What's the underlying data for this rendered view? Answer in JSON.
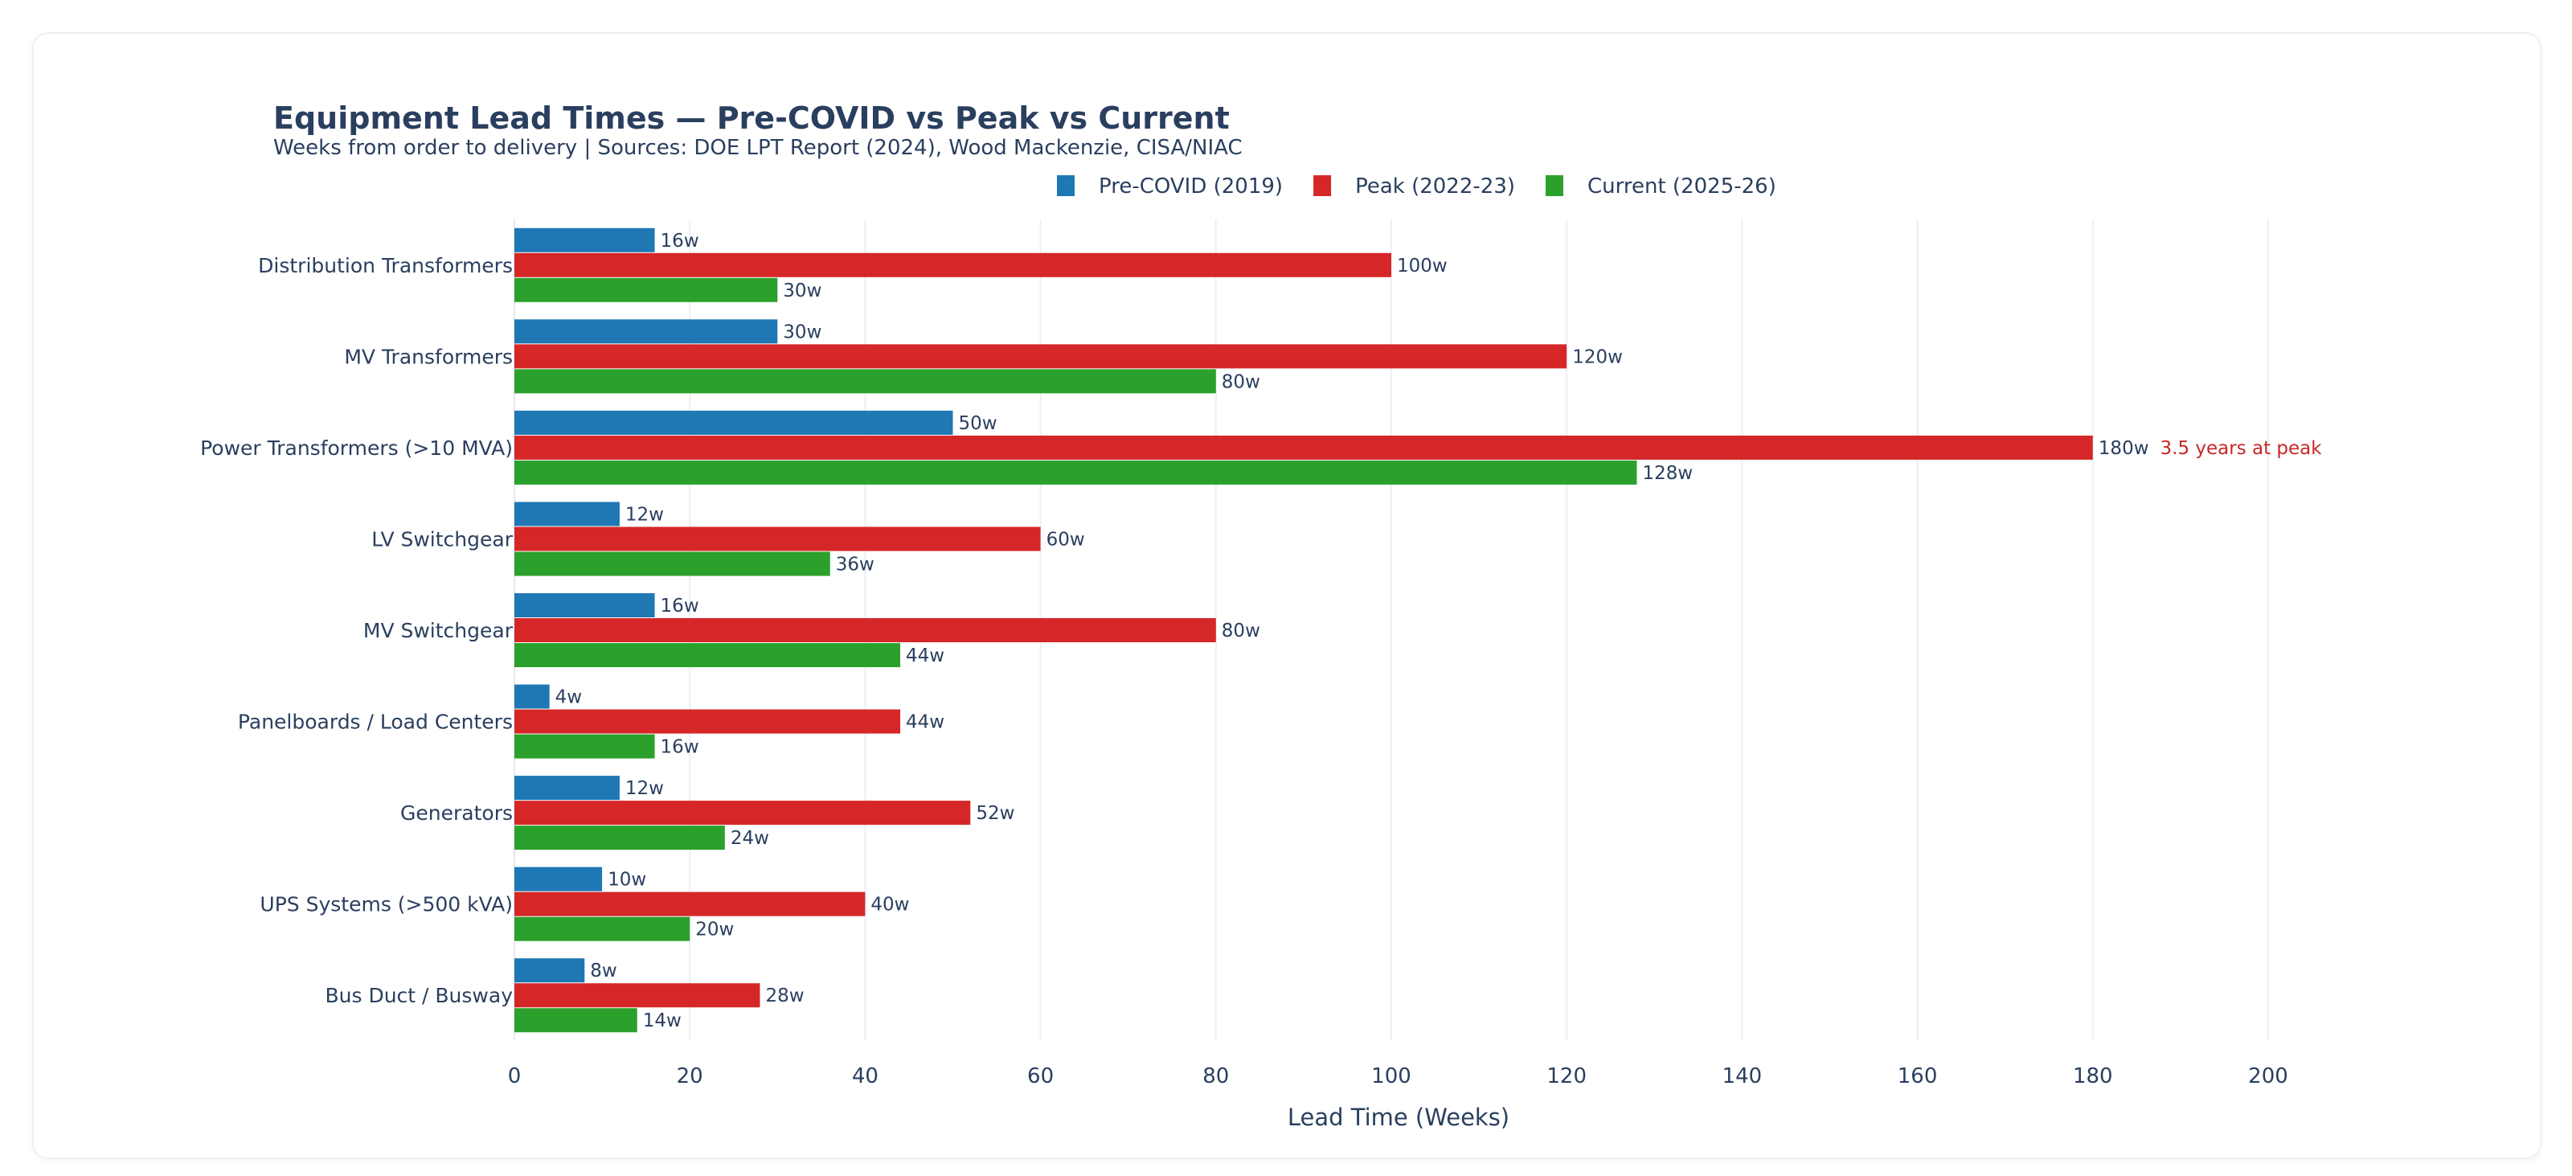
{
  "chart_data": {
    "type": "bar",
    "orientation": "horizontal",
    "title": "Equipment Lead Times — Pre-COVID vs Peak vs Current",
    "subtitle": "Weeks from order to delivery | Sources: DOE LPT Report (2024), Wood Mackenzie, CISA/NIAC",
    "xlabel": "Lead Time (Weeks)",
    "ylabel": "",
    "xlim": [
      0,
      200
    ],
    "xticks": [
      "0",
      "20",
      "40",
      "60",
      "80",
      "100",
      "120",
      "140",
      "160",
      "180",
      "200"
    ],
    "grid": true,
    "legend_position": "top-right",
    "value_suffix": "w",
    "categories": [
      "Distribution Transformers",
      "MV Transformers",
      "Power Transformers (>10 MVA)",
      "LV Switchgear",
      "MV Switchgear",
      "Panelboards / Load Centers",
      "Generators",
      "UPS Systems (>500 kVA)",
      "Bus Duct / Busway"
    ],
    "series": [
      {
        "name": "Pre-COVID (2019)",
        "color": "#1f77b4",
        "values": [
          16,
          30,
          50,
          12,
          16,
          4,
          12,
          10,
          8
        ]
      },
      {
        "name": "Peak (2022-23)",
        "color": "#d62728",
        "values": [
          100,
          120,
          180,
          60,
          80,
          44,
          52,
          40,
          28
        ]
      },
      {
        "name": "Current (2025-26)",
        "color": "#2ca02c",
        "values": [
          30,
          80,
          128,
          36,
          44,
          16,
          24,
          20,
          14
        ]
      }
    ],
    "annotations": [
      {
        "text": "3.5 years at peak",
        "category": "Power Transformers (>10 MVA)",
        "x": 180,
        "color": "#c62828"
      }
    ]
  }
}
